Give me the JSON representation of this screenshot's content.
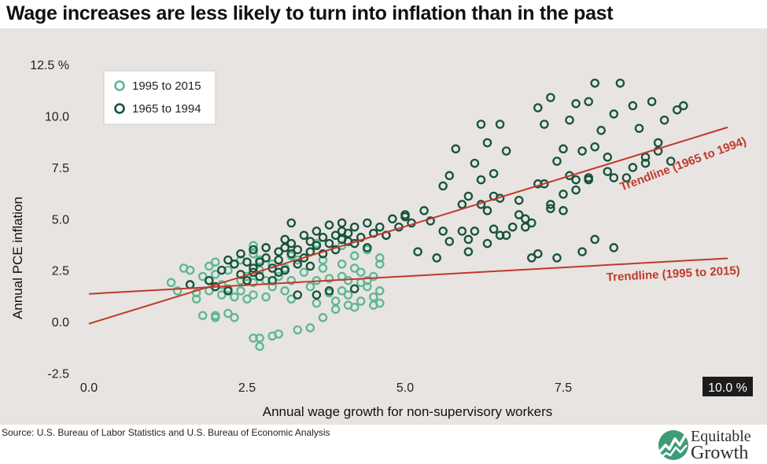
{
  "title": "Wage increases are less likely to turn into inflation than in the past",
  "source": "Source: U.S. Bureau of Labor Statistics and U.S. Bureau of Economic Analysis",
  "logo": {
    "line1": "Equitable",
    "line2": "Growth"
  },
  "chart_data": {
    "type": "scatter",
    "title": "Wage increases are less likely to turn into inflation than in the past",
    "xlabel": "Annual wage growth for non-supervisory workers",
    "ylabel": "Annual PCE inflation",
    "xlim": [
      -0.1,
      10.5
    ],
    "ylim": [
      -2.8,
      13.0
    ],
    "x_ticks": [
      0,
      2.5,
      5,
      7.5,
      10
    ],
    "x_tick_labels": [
      "0.0",
      "2.5",
      "5.0",
      "7.5",
      "10.0 %"
    ],
    "y_ticks": [
      -2.5,
      0,
      2.5,
      5,
      7.5,
      10,
      12.5
    ],
    "y_tick_labels": [
      "-2.5",
      "0.0",
      "2.5",
      "5.0",
      "7.5",
      "10.0",
      "12.5 %"
    ],
    "grid": false,
    "legend_position": "top-left",
    "colors": {
      "series_1995_2015": "#5cb893",
      "series_1965_1994": "#15533b",
      "trendline": "#c0392b",
      "background": "#e8e4e1",
      "tick_highlight_bg": "#1c1c1c"
    },
    "series": [
      {
        "name": "1995 to 2015",
        "color": "#5cb893",
        "points": [
          [
            1.3,
            1.9
          ],
          [
            1.4,
            1.5
          ],
          [
            1.5,
            2.6
          ],
          [
            1.6,
            2.5
          ],
          [
            1.6,
            1.8
          ],
          [
            1.7,
            1.4
          ],
          [
            1.7,
            1.1
          ],
          [
            1.8,
            0.3
          ],
          [
            1.8,
            2.2
          ],
          [
            1.9,
            2.7
          ],
          [
            1.9,
            2.0
          ],
          [
            1.9,
            1.5
          ],
          [
            2.0,
            0.2
          ],
          [
            2.0,
            0.3
          ],
          [
            2.0,
            2.9
          ],
          [
            2.0,
            2.3
          ],
          [
            2.1,
            1.8
          ],
          [
            2.1,
            1.3
          ],
          [
            2.2,
            0.4
          ],
          [
            2.2,
            1.6
          ],
          [
            2.2,
            2.5
          ],
          [
            2.3,
            0.2
          ],
          [
            2.3,
            2.8
          ],
          [
            2.3,
            1.2
          ],
          [
            2.4,
            2.0
          ],
          [
            2.4,
            1.5
          ],
          [
            2.5,
            1.1
          ],
          [
            2.5,
            2.2
          ],
          [
            2.6,
            3.3
          ],
          [
            2.6,
            3.7
          ],
          [
            2.6,
            1.9
          ],
          [
            2.6,
            1.3
          ],
          [
            2.6,
            -0.8
          ],
          [
            2.7,
            -1.2
          ],
          [
            2.7,
            -0.8
          ],
          [
            2.7,
            2.5
          ],
          [
            2.7,
            3.0
          ],
          [
            2.8,
            2.0
          ],
          [
            2.8,
            1.2
          ],
          [
            2.9,
            -0.7
          ],
          [
            2.9,
            2.8
          ],
          [
            2.9,
            1.7
          ],
          [
            3.0,
            -0.6
          ],
          [
            3.0,
            2.2
          ],
          [
            3.0,
            3.4
          ],
          [
            3.1,
            1.5
          ],
          [
            3.1,
            2.6
          ],
          [
            3.2,
            2.0
          ],
          [
            3.2,
            1.1
          ],
          [
            3.3,
            -0.4
          ],
          [
            3.3,
            3.0
          ],
          [
            3.4,
            2.4
          ],
          [
            3.5,
            -0.3
          ],
          [
            3.5,
            1.7
          ],
          [
            3.5,
            3.4
          ],
          [
            3.6,
            0.9
          ],
          [
            3.6,
            2.0
          ],
          [
            3.7,
            3.0
          ],
          [
            3.7,
            0.2
          ],
          [
            3.7,
            2.6
          ],
          [
            3.8,
            2.1
          ],
          [
            3.8,
            1.4
          ],
          [
            3.9,
            3.5
          ],
          [
            3.9,
            1.0
          ],
          [
            3.9,
            0.6
          ],
          [
            4.0,
            2.8
          ],
          [
            4.0,
            2.2
          ],
          [
            4.0,
            1.5
          ],
          [
            4.0,
            3.7
          ],
          [
            4.1,
            0.8
          ],
          [
            4.1,
            2.0
          ],
          [
            4.1,
            1.3
          ],
          [
            4.2,
            2.6
          ],
          [
            4.2,
            0.7
          ],
          [
            4.2,
            3.2
          ],
          [
            4.3,
            1.9
          ],
          [
            4.3,
            1.0
          ],
          [
            4.3,
            2.4
          ],
          [
            4.4,
            2.0
          ],
          [
            4.4,
            3.5
          ],
          [
            4.4,
            1.7
          ],
          [
            4.5,
            1.2
          ],
          [
            4.5,
            2.2
          ],
          [
            4.5,
            0.8
          ],
          [
            4.6,
            2.8
          ],
          [
            4.6,
            1.5
          ],
          [
            4.6,
            3.1
          ],
          [
            4.6,
            0.9
          ],
          [
            3.2,
            3.2
          ],
          [
            2.4,
            3.0
          ],
          [
            2.8,
            3.6
          ],
          [
            3.6,
            3.8
          ]
        ]
      },
      {
        "name": "1965 to 1994",
        "color": "#15533b",
        "points": [
          [
            1.6,
            1.8
          ],
          [
            1.9,
            2.0
          ],
          [
            2.0,
            1.7
          ],
          [
            2.1,
            2.5
          ],
          [
            2.2,
            3.0
          ],
          [
            2.3,
            2.8
          ],
          [
            2.4,
            2.3
          ],
          [
            2.4,
            3.3
          ],
          [
            2.5,
            2.0
          ],
          [
            2.6,
            2.6
          ],
          [
            2.6,
            3.5
          ],
          [
            2.7,
            2.9
          ],
          [
            2.7,
            2.2
          ],
          [
            2.8,
            3.1
          ],
          [
            2.8,
            3.6
          ],
          [
            2.9,
            2.6
          ],
          [
            2.9,
            2.0
          ],
          [
            3.0,
            3.4
          ],
          [
            3.0,
            3.0
          ],
          [
            3.1,
            3.6
          ],
          [
            3.1,
            2.5
          ],
          [
            3.2,
            3.3
          ],
          [
            3.2,
            3.8
          ],
          [
            3.3,
            2.8
          ],
          [
            3.3,
            3.5
          ],
          [
            3.4,
            3.1
          ],
          [
            3.4,
            4.2
          ],
          [
            3.5,
            3.9
          ],
          [
            3.5,
            3.4
          ],
          [
            3.6,
            3.7
          ],
          [
            3.6,
            4.4
          ],
          [
            3.7,
            3.3
          ],
          [
            3.7,
            4.1
          ],
          [
            3.8,
            3.8
          ],
          [
            3.8,
            4.7
          ],
          [
            3.9,
            4.2
          ],
          [
            3.9,
            3.5
          ],
          [
            4.0,
            4.0
          ],
          [
            4.0,
            4.8
          ],
          [
            4.1,
            3.9
          ],
          [
            4.1,
            4.3
          ],
          [
            4.2,
            4.6
          ],
          [
            4.2,
            3.8
          ],
          [
            4.3,
            4.1
          ],
          [
            4.4,
            4.8
          ],
          [
            4.4,
            3.6
          ],
          [
            4.5,
            4.3
          ],
          [
            4.6,
            4.6
          ],
          [
            4.7,
            4.2
          ],
          [
            4.8,
            5.0
          ],
          [
            4.9,
            4.6
          ],
          [
            5.0,
            5.1
          ],
          [
            5.1,
            4.8
          ],
          [
            5.2,
            3.4
          ],
          [
            5.3,
            5.4
          ],
          [
            5.4,
            4.9
          ],
          [
            5.5,
            3.1
          ],
          [
            5.6,
            6.6
          ],
          [
            5.7,
            7.1
          ],
          [
            5.8,
            8.4
          ],
          [
            5.9,
            5.7
          ],
          [
            6.0,
            6.1
          ],
          [
            6.0,
            4.0
          ],
          [
            6.1,
            7.7
          ],
          [
            6.2,
            6.9
          ],
          [
            6.2,
            9.6
          ],
          [
            6.3,
            5.4
          ],
          [
            6.3,
            8.7
          ],
          [
            6.4,
            7.2
          ],
          [
            6.4,
            4.5
          ],
          [
            6.5,
            9.6
          ],
          [
            6.5,
            6.0
          ],
          [
            6.6,
            8.3
          ],
          [
            6.7,
            4.6
          ],
          [
            6.8,
            5.9
          ],
          [
            6.9,
            4.6
          ],
          [
            7.0,
            4.8
          ],
          [
            7.1,
            6.7
          ],
          [
            7.1,
            10.4
          ],
          [
            7.2,
            9.6
          ],
          [
            7.3,
            10.9
          ],
          [
            7.3,
            5.5
          ],
          [
            7.4,
            7.8
          ],
          [
            7.5,
            8.4
          ],
          [
            7.5,
            6.2
          ],
          [
            7.6,
            9.8
          ],
          [
            7.7,
            10.6
          ],
          [
            7.7,
            6.9
          ],
          [
            7.8,
            8.3
          ],
          [
            7.9,
            10.7
          ],
          [
            7.9,
            7.0
          ],
          [
            8.0,
            11.6
          ],
          [
            8.1,
            9.3
          ],
          [
            8.2,
            7.3
          ],
          [
            8.3,
            10.1
          ],
          [
            8.4,
            11.6
          ],
          [
            8.5,
            7.0
          ],
          [
            8.6,
            10.5
          ],
          [
            8.7,
            9.4
          ],
          [
            8.8,
            7.7
          ],
          [
            8.9,
            10.7
          ],
          [
            9.0,
            8.7
          ],
          [
            9.1,
            9.8
          ],
          [
            9.2,
            7.8
          ],
          [
            9.3,
            10.3
          ],
          [
            9.4,
            10.5
          ],
          [
            6.0,
            3.4
          ],
          [
            6.3,
            3.8
          ],
          [
            6.6,
            4.2
          ],
          [
            7.1,
            3.3
          ],
          [
            7.4,
            3.1
          ],
          [
            7.8,
            3.4
          ],
          [
            8.0,
            4.0
          ],
          [
            8.3,
            3.6
          ],
          [
            2.2,
            1.5
          ],
          [
            2.6,
            2.4
          ],
          [
            3.5,
            2.7
          ],
          [
            3.3,
            1.3
          ],
          [
            3.6,
            1.3
          ],
          [
            3.8,
            1.5
          ],
          [
            4.2,
            1.6
          ],
          [
            3.2,
            4.8
          ],
          [
            3.1,
            4.0
          ],
          [
            2.5,
            2.9
          ],
          [
            3.0,
            2.4
          ],
          [
            4.7,
            4.2
          ],
          [
            4.0,
            4.4
          ],
          [
            5.0,
            5.2
          ],
          [
            5.6,
            4.4
          ],
          [
            5.9,
            4.4
          ],
          [
            6.2,
            5.7
          ],
          [
            6.4,
            6.1
          ],
          [
            6.8,
            5.2
          ],
          [
            7.2,
            6.7
          ],
          [
            7.5,
            5.4
          ],
          [
            7.7,
            6.4
          ],
          [
            7.9,
            6.9
          ],
          [
            8.0,
            8.5
          ],
          [
            8.2,
            8.0
          ],
          [
            8.6,
            7.5
          ],
          [
            8.8,
            8.0
          ],
          [
            9.0,
            8.3
          ],
          [
            7.0,
            3.1
          ],
          [
            6.1,
            4.4
          ],
          [
            5.7,
            3.9
          ],
          [
            6.5,
            4.2
          ],
          [
            6.9,
            5.0
          ],
          [
            7.3,
            5.7
          ],
          [
            7.6,
            7.1
          ],
          [
            8.3,
            7.0
          ]
        ]
      }
    ],
    "trendlines": [
      {
        "label": "Trendline (1965 to 1994)",
        "start": [
          0,
          -0.1
        ],
        "end": [
          10.1,
          9.45
        ]
      },
      {
        "label": "Trendline (1995 to 2015)",
        "start": [
          0,
          1.35
        ],
        "end": [
          10.1,
          3.08
        ]
      }
    ]
  }
}
